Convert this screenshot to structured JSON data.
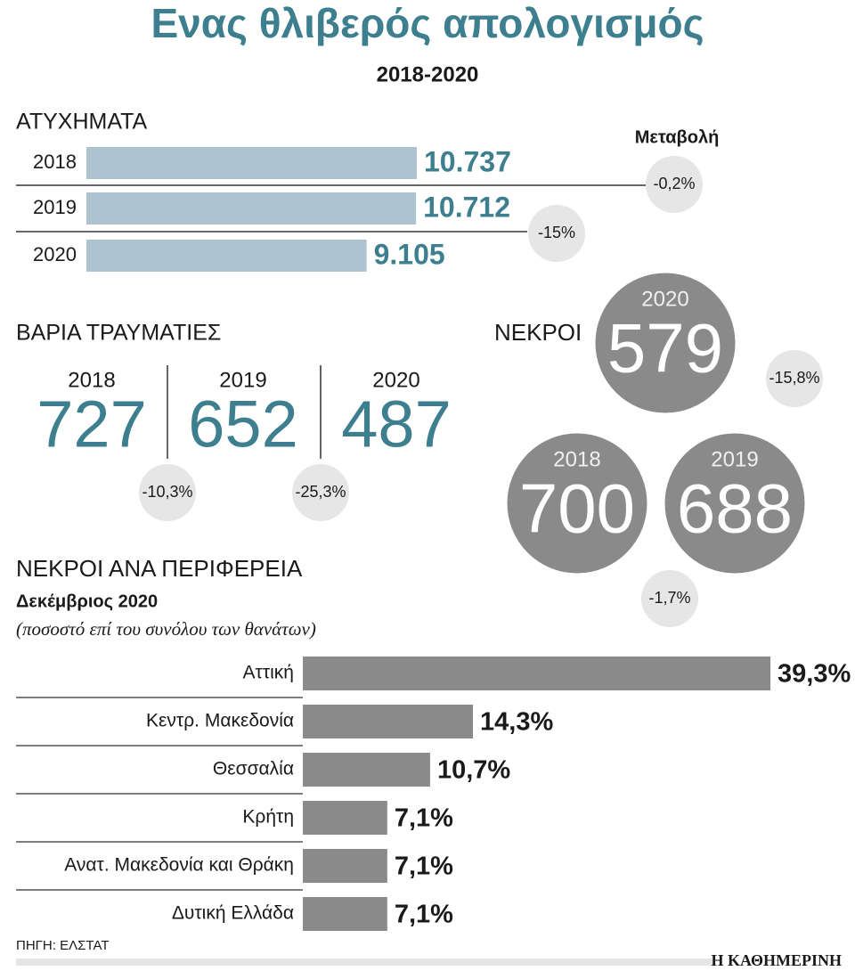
{
  "title": "Ενας θλιβερός απολογισμός",
  "subtitle": "2018-2020",
  "chart_data": [
    {
      "type": "bar",
      "title": "ΑΤΥΧΗΜΑΤΑ",
      "color": "#adc3d0",
      "categories": [
        "2018",
        "2019",
        "2020"
      ],
      "values": [
        10737,
        10712,
        9105
      ],
      "value_labels": [
        "10.737",
        "10.712",
        "9.105"
      ],
      "change_title": "Μεταβολή",
      "changes": [
        {
          "value": -0.2,
          "label": "-0,2%"
        },
        {
          "value": -15,
          "label": "-15%"
        }
      ]
    },
    {
      "type": "stat",
      "title": "ΒΑΡΙΑ ΤΡΑΥΜΑΤΙΕΣ",
      "color": "#3d7f8f",
      "categories": [
        "2018",
        "2019",
        "2020"
      ],
      "values": [
        727,
        652,
        487
      ],
      "changes": [
        {
          "value": -10.3,
          "label": "-10,3%"
        },
        {
          "value": -25.3,
          "label": "-25,3%"
        }
      ]
    },
    {
      "type": "bubble",
      "title": "ΝΕΚΡΟΙ",
      "color": "#8a8a8a",
      "categories": [
        "2018",
        "2019",
        "2020"
      ],
      "values": [
        700,
        688,
        579
      ],
      "changes": [
        {
          "value": -1.7,
          "label": "-1,7%"
        },
        {
          "value": -15.8,
          "label": "-15,8%"
        }
      ]
    },
    {
      "type": "hbar",
      "title": "ΝΕΚΡΟΙ ΑΝΑ ΠΕΡΙΦΕΡΕΙΑ",
      "subtitle": "Δεκέμβριος 2020",
      "note": "(ποσοστό επί του συνόλου των θανάτων)",
      "color": "#8a8a8a",
      "categories": [
        "Αττική",
        "Κεντρ. Μακεδονία",
        "Θεσσαλία",
        "Κρήτη",
        "Ανατ. Μακεδονία και Θράκη",
        "Δυτική Ελλάδα"
      ],
      "values": [
        39.3,
        14.3,
        10.7,
        7.1,
        7.1,
        7.1
      ],
      "value_labels": [
        "39,3%",
        "14,3%",
        "10,7%",
        "7,1%",
        "7,1%",
        "7,1%"
      ]
    }
  ],
  "source": "ΠΗΓΗ: ΕΛΣΤΑΤ",
  "brand": "Η ΚΑΘΗΜΕΡΙΝΗ"
}
